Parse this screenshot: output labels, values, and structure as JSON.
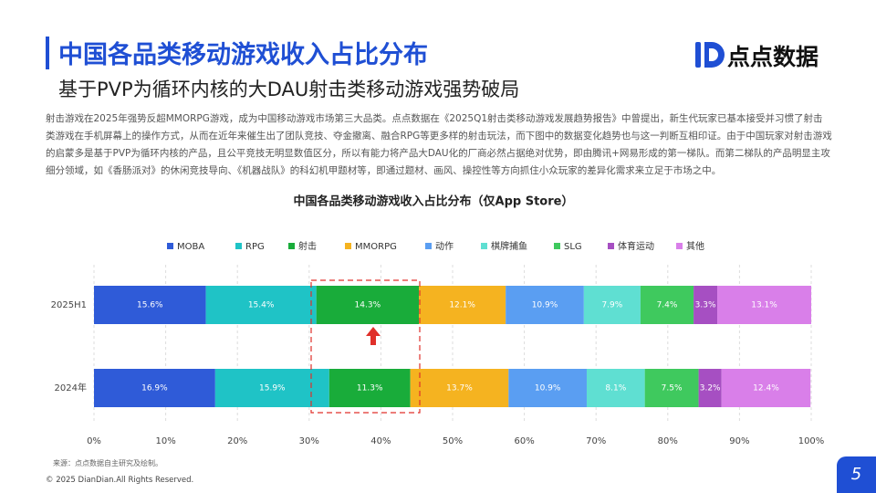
{
  "header": {
    "title": "中国各品类移动游戏收入占比分布",
    "subtitle": "基于PVP为循环内核的大DAU射击类移动游戏强势破局",
    "logo": "点点数据"
  },
  "body": {
    "paragraph": "射击游戏在2025年强势反超MMORPG游戏，成为中国移动游戏市场第三大品类。点点数据在《2025Q1射击类移动游戏发展趋势报告》中曾提出，新生代玩家已基本接受并习惯了射击类游戏在手机屏幕上的操作方式，从而在近年来催生出了团队竞技、夺金撤离、融合RPG等更多样的射击玩法，而下图中的数据变化趋势也与这一判断互相印证。由于中国玩家对射击游戏的启蒙多是基于PVP为循环内核的产品，且公平竞技无明显数值区分，所以有能力将产品大DAU化的厂商必然占据绝对优势，即由腾讯+网易形成的第一梯队。而第二梯队的产品明显主攻细分领域，如《香肠派对》的休闲竞技导向、《机器战队》的科幻机甲题材等，即通过题材、画风、操控性等方向抓住小众玩家的差异化需求来立足于市场之中。"
  },
  "chart_data": {
    "type": "stacked_bar_h",
    "title": "中国各品类移动游戏收入占比分布（仅App Store）",
    "categories": [
      "2025H1",
      "2024年"
    ],
    "series": [
      {
        "name": "MOBA",
        "color": "#2f5bd8",
        "values": [
          15.6,
          16.9
        ],
        "value_labels": [
          "15.6%",
          "16.9%"
        ]
      },
      {
        "name": "RPG",
        "color": "#1fc3c6",
        "values": [
          15.4,
          15.9
        ],
        "value_labels": [
          "15.4%",
          "15.9%"
        ]
      },
      {
        "name": "射击",
        "color": "#19ac3a",
        "values": [
          14.3,
          11.3
        ],
        "value_labels": [
          "14.3%",
          "11.3%"
        ]
      },
      {
        "name": "MMORPG",
        "color": "#f5b320",
        "values": [
          12.1,
          13.7
        ],
        "value_labels": [
          "12.1%",
          "13.7%"
        ]
      },
      {
        "name": "动作",
        "color": "#5a9ef2",
        "values": [
          10.9,
          10.9
        ],
        "value_labels": [
          "10.9%",
          "10.9%"
        ]
      },
      {
        "name": "棋牌捕鱼",
        "color": "#5fdfd2",
        "values": [
          7.9,
          8.1
        ],
        "value_labels": [
          "7.9%",
          "8.1%"
        ]
      },
      {
        "name": "SLG",
        "color": "#3fc95e",
        "values": [
          7.4,
          7.5
        ],
        "value_labels": [
          "7.4%",
          "7.5%"
        ]
      },
      {
        "name": "体育运动",
        "color": "#a64fc2",
        "values": [
          3.3,
          3.2
        ],
        "value_labels": [
          "3.3%",
          "3.2%"
        ]
      },
      {
        "name": "其他",
        "color": "#d97fe9",
        "values": [
          13.1,
          12.4
        ],
        "value_labels": [
          "13.1%",
          "12.4%"
        ]
      }
    ],
    "xlim": [
      0,
      100
    ],
    "xticks": [
      {
        "value": 0,
        "label": "0%"
      },
      {
        "value": 10,
        "label": "10%"
      },
      {
        "value": 20,
        "label": "20%"
      },
      {
        "value": 30,
        "label": "30%"
      },
      {
        "value": 40,
        "label": "40%"
      },
      {
        "value": 50,
        "label": "50%"
      },
      {
        "value": 60,
        "label": "60%"
      },
      {
        "value": 70,
        "label": "70%"
      },
      {
        "value": 80,
        "label": "80%"
      },
      {
        "value": 90,
        "label": "90%"
      },
      {
        "value": 100,
        "label": "100%"
      }
    ],
    "grid": true,
    "legend": "top"
  },
  "footer": {
    "source": "来源：点点数据自主研究及绘制。",
    "copyright": "© 2025 DianDian.All Rights Reserved.",
    "page": "5"
  }
}
